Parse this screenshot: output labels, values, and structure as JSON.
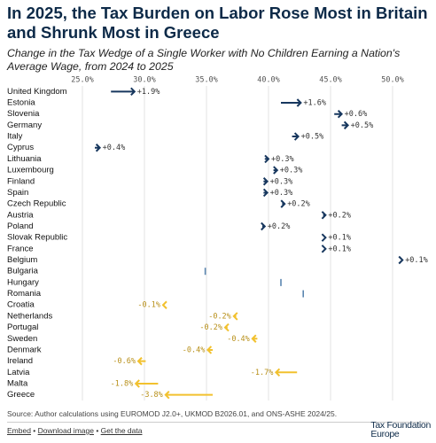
{
  "chart_data": {
    "type": "arrow",
    "title": "In 2025, the Tax Burden on Labor Rose Most in Britain and Shrunk Most in Greece",
    "subtitle": "Change in the Tax Wedge of a Single Worker with No Children Earning a Nation's Average Wage, from 2024 to 2025",
    "categories": [
      "United Kingdom",
      "Estonia",
      "Slovenia",
      "Germany",
      "Italy",
      "Cyprus",
      "Lithuania",
      "Luxembourg",
      "Finland",
      "Spain",
      "Czech Republic",
      "Austria",
      "Poland",
      "Slovak Republic",
      "France",
      "Belgium",
      "Bulgaria",
      "Hungary",
      "Romania",
      "Croatia",
      "Netherlands",
      "Portugal",
      "Sweden",
      "Denmark",
      "Ireland",
      "Latvia",
      "Malta",
      "Greece"
    ],
    "start_values": [
      27.3,
      41.0,
      45.3,
      45.9,
      41.9,
      26.0,
      39.7,
      40.4,
      39.6,
      39.6,
      41.1,
      44.4,
      39.5,
      44.5,
      44.5,
      50.7,
      34.9,
      41.0,
      42.8,
      31.6,
      37.4,
      36.7,
      39.1,
      35.5,
      30.1,
      42.3,
      31.1,
      35.5
    ],
    "end_values": [
      29.2,
      42.6,
      45.9,
      46.4,
      42.4,
      26.4,
      40.0,
      40.7,
      39.9,
      39.9,
      41.3,
      44.6,
      39.7,
      44.6,
      44.6,
      50.8,
      34.9,
      41.0,
      42.8,
      31.5,
      37.2,
      36.5,
      38.7,
      35.1,
      29.5,
      40.6,
      29.3,
      31.7
    ],
    "changes": [
      1.9,
      1.6,
      0.6,
      0.5,
      0.5,
      0.4,
      0.3,
      0.3,
      0.3,
      0.3,
      0.2,
      0.2,
      0.2,
      0.1,
      0.1,
      0.1,
      0,
      0,
      0,
      -0.1,
      -0.2,
      -0.2,
      -0.4,
      -0.4,
      -0.6,
      -1.7,
      -1.8,
      -3.8
    ],
    "change_labels": [
      "+1.9%",
      "+1.6%",
      "+0.6%",
      "+0.5%",
      "+0.5%",
      "+0.4%",
      "+0.3%",
      "+0.3%",
      "+0.3%",
      "+0.3%",
      "+0.2%",
      "+0.2%",
      "+0.2%",
      "+0.1%",
      "+0.1%",
      "+0.1%",
      null,
      null,
      null,
      "-0.1%",
      "-0.2%",
      "-0.2%",
      "-0.4%",
      "-0.4%",
      "-0.6%",
      "-1.7%",
      "-1.8%",
      "-3.8%"
    ],
    "xlim": [
      23.5,
      51.5
    ],
    "xticks": [
      {
        "value": 25,
        "label": "25.0%"
      },
      {
        "value": 30,
        "label": "30.0%"
      },
      {
        "value": 35,
        "label": "35.0%"
      },
      {
        "value": 40,
        "label": "40.0%"
      },
      {
        "value": 45,
        "label": "45.0%"
      },
      {
        "value": 50,
        "label": "50.0%"
      }
    ],
    "grid": true,
    "colors": {
      "increase": "#17375e",
      "decrease": "#f2c12e",
      "unchanged": "#5b86b0"
    }
  },
  "footer": {
    "source": "Source: Author calculations using EUROMOD J2.0+, UKMOD B2026.01, and ONS-ASHE 2024/25.",
    "links": [
      "Embed",
      "Download image",
      "Get the data"
    ],
    "logo": [
      "Tax Foundation",
      "Europe"
    ]
  }
}
